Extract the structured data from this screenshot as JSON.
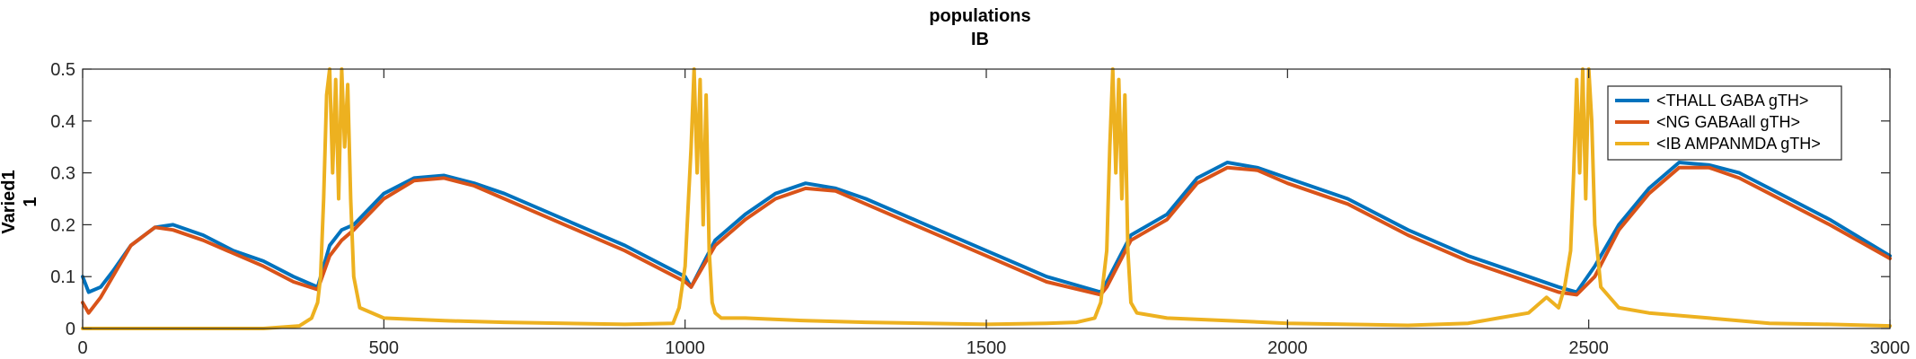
{
  "chart_data": {
    "type": "line",
    "title": [
      "populations",
      "IB"
    ],
    "ylabel": [
      "Varied1",
      "1"
    ],
    "xlabel": "",
    "xlim": [
      0,
      3000
    ],
    "ylim": [
      0,
      0.5
    ],
    "xticks": [
      0,
      500,
      1000,
      1500,
      2000,
      2500,
      3000
    ],
    "xtick_labels": [
      "0",
      "500",
      "1000",
      "1500",
      "2000",
      "2500",
      "3000"
    ],
    "yticks": [
      0,
      0.1,
      0.2,
      0.3,
      0.4,
      0.5
    ],
    "ytick_labels": [
      "0",
      "0.1",
      "0.2",
      "0.3",
      "0.4",
      "0.5"
    ],
    "grid": false,
    "legend_position": "top-right",
    "series": [
      {
        "name": "<THALL GABA gTH>",
        "color": "#0072BD",
        "x": [
          0,
          10,
          30,
          50,
          80,
          120,
          150,
          200,
          250,
          300,
          350,
          390,
          410,
          430,
          450,
          500,
          550,
          600,
          650,
          700,
          800,
          900,
          1000,
          1010,
          1050,
          1100,
          1150,
          1200,
          1250,
          1300,
          1400,
          1500,
          1600,
          1690,
          1700,
          1740,
          1800,
          1850,
          1900,
          1950,
          2000,
          2100,
          2200,
          2300,
          2400,
          2450,
          2480,
          2510,
          2550,
          2600,
          2650,
          2700,
          2750,
          2800,
          2900,
          3000
        ],
        "y": [
          0.1,
          0.07,
          0.08,
          0.11,
          0.16,
          0.195,
          0.2,
          0.18,
          0.15,
          0.13,
          0.1,
          0.08,
          0.16,
          0.19,
          0.2,
          0.26,
          0.29,
          0.295,
          0.28,
          0.26,
          0.21,
          0.16,
          0.1,
          0.08,
          0.17,
          0.22,
          0.26,
          0.28,
          0.27,
          0.25,
          0.2,
          0.15,
          0.1,
          0.07,
          0.09,
          0.18,
          0.22,
          0.29,
          0.32,
          0.31,
          0.29,
          0.25,
          0.19,
          0.14,
          0.1,
          0.08,
          0.07,
          0.12,
          0.2,
          0.27,
          0.32,
          0.315,
          0.3,
          0.27,
          0.21,
          0.14
        ]
      },
      {
        "name": "<NG GABAall gTH>",
        "color": "#D95319",
        "x": [
          0,
          10,
          30,
          50,
          80,
          120,
          150,
          200,
          250,
          300,
          350,
          390,
          410,
          430,
          450,
          500,
          550,
          600,
          650,
          700,
          800,
          900,
          1000,
          1010,
          1050,
          1100,
          1150,
          1200,
          1250,
          1300,
          1400,
          1500,
          1600,
          1690,
          1700,
          1740,
          1800,
          1850,
          1900,
          1950,
          2000,
          2100,
          2200,
          2300,
          2400,
          2450,
          2480,
          2510,
          2550,
          2600,
          2650,
          2700,
          2750,
          2800,
          2900,
          3000
        ],
        "y": [
          0.05,
          0.03,
          0.06,
          0.1,
          0.16,
          0.195,
          0.19,
          0.17,
          0.145,
          0.12,
          0.09,
          0.075,
          0.14,
          0.17,
          0.19,
          0.25,
          0.285,
          0.29,
          0.275,
          0.25,
          0.2,
          0.15,
          0.09,
          0.08,
          0.16,
          0.21,
          0.25,
          0.27,
          0.265,
          0.24,
          0.19,
          0.14,
          0.09,
          0.065,
          0.08,
          0.17,
          0.21,
          0.28,
          0.31,
          0.305,
          0.28,
          0.24,
          0.18,
          0.13,
          0.09,
          0.07,
          0.065,
          0.1,
          0.19,
          0.26,
          0.31,
          0.31,
          0.29,
          0.26,
          0.2,
          0.135
        ]
      },
      {
        "name": "<IB AMPANMDA gTH>",
        "color": "#EDB120",
        "x": [
          0,
          100,
          200,
          300,
          360,
          380,
          390,
          395,
          400,
          405,
          410,
          415,
          420,
          425,
          430,
          435,
          440,
          445,
          450,
          460,
          500,
          600,
          700,
          800,
          900,
          980,
          990,
          1000,
          1010,
          1015,
          1020,
          1025,
          1030,
          1035,
          1040,
          1045,
          1050,
          1060,
          1100,
          1200,
          1300,
          1400,
          1500,
          1600,
          1650,
          1680,
          1690,
          1700,
          1705,
          1710,
          1715,
          1720,
          1725,
          1730,
          1735,
          1740,
          1750,
          1800,
          1900,
          2000,
          2100,
          2200,
          2300,
          2350,
          2400,
          2430,
          2450,
          2460,
          2470,
          2475,
          2480,
          2485,
          2490,
          2495,
          2500,
          2505,
          2510,
          2520,
          2550,
          2600,
          2700,
          2800,
          2900,
          3000
        ],
        "y": [
          0.0,
          0.0,
          0.0,
          0.0,
          0.005,
          0.02,
          0.05,
          0.1,
          0.25,
          0.45,
          0.5,
          0.3,
          0.48,
          0.25,
          0.5,
          0.35,
          0.47,
          0.25,
          0.1,
          0.04,
          0.02,
          0.015,
          0.012,
          0.01,
          0.008,
          0.01,
          0.04,
          0.12,
          0.35,
          0.5,
          0.3,
          0.48,
          0.2,
          0.45,
          0.15,
          0.05,
          0.03,
          0.02,
          0.02,
          0.015,
          0.012,
          0.01,
          0.008,
          0.01,
          0.012,
          0.02,
          0.05,
          0.15,
          0.35,
          0.5,
          0.3,
          0.48,
          0.25,
          0.45,
          0.15,
          0.05,
          0.03,
          0.02,
          0.015,
          0.01,
          0.008,
          0.006,
          0.01,
          0.02,
          0.03,
          0.06,
          0.04,
          0.08,
          0.15,
          0.3,
          0.48,
          0.3,
          0.5,
          0.25,
          0.5,
          0.4,
          0.2,
          0.08,
          0.04,
          0.03,
          0.02,
          0.01,
          0.008,
          0.005
        ]
      }
    ]
  }
}
